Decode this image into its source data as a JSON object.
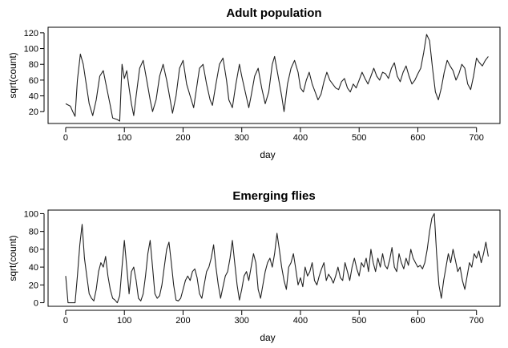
{
  "chart_data": [
    {
      "type": "line",
      "title": "Adult population",
      "xlabel": "day",
      "ylabel": "sqrt(count)",
      "xlim": [
        -30,
        740
      ],
      "ylim": [
        5,
        127
      ],
      "xticks": [
        0,
        100,
        200,
        300,
        400,
        500,
        600,
        700
      ],
      "yticks": [
        20,
        40,
        60,
        80,
        100,
        120
      ],
      "grid": false,
      "series": [
        {
          "x": [
            0,
            8,
            12,
            16,
            20,
            25,
            30,
            35,
            40,
            46,
            52,
            58,
            64,
            70,
            76,
            80,
            88,
            92,
            96,
            100,
            104,
            108,
            112,
            116,
            120,
            126,
            132,
            138,
            144,
            148,
            154,
            160,
            166,
            172,
            178,
            182,
            188,
            194,
            200,
            206,
            212,
            218,
            222,
            228,
            234,
            240,
            246,
            250,
            256,
            262,
            268,
            274,
            278,
            284,
            290,
            296,
            300,
            306,
            312,
            316,
            322,
            328,
            334,
            340,
            346,
            352,
            356,
            362,
            368,
            372,
            378,
            384,
            390,
            396,
            400,
            405,
            410,
            415,
            420,
            425,
            430,
            435,
            440,
            445,
            450,
            455,
            460,
            465,
            470,
            475,
            480,
            485,
            490,
            495,
            500,
            505,
            510,
            515,
            520,
            525,
            530,
            535,
            540,
            545,
            550,
            555,
            560,
            565,
            570,
            575,
            580,
            585,
            590,
            595,
            600,
            605,
            610,
            615,
            620,
            625,
            630,
            635,
            640,
            645,
            650,
            655,
            660,
            665,
            670,
            675,
            680,
            685,
            690,
            695,
            700,
            705,
            710,
            715,
            720
          ],
          "y": [
            30,
            27,
            20,
            14,
            60,
            93,
            80,
            55,
            30,
            15,
            35,
            65,
            72,
            50,
            28,
            12,
            10,
            8,
            80,
            62,
            72,
            50,
            30,
            15,
            40,
            75,
            85,
            60,
            35,
            20,
            35,
            65,
            80,
            60,
            35,
            18,
            40,
            75,
            85,
            55,
            40,
            25,
            45,
            75,
            80,
            55,
            35,
            28,
            55,
            80,
            88,
            60,
            35,
            25,
            55,
            80,
            65,
            45,
            25,
            40,
            65,
            75,
            50,
            30,
            45,
            80,
            90,
            65,
            40,
            20,
            55,
            75,
            85,
            70,
            50,
            45,
            60,
            70,
            55,
            45,
            35,
            42,
            58,
            70,
            60,
            55,
            50,
            48,
            58,
            62,
            50,
            45,
            55,
            50,
            60,
            70,
            62,
            55,
            65,
            75,
            65,
            60,
            70,
            68,
            62,
            75,
            82,
            65,
            58,
            70,
            78,
            65,
            55,
            60,
            68,
            75,
            95,
            118,
            110,
            75,
            45,
            35,
            50,
            70,
            85,
            78,
            72,
            60,
            68,
            80,
            75,
            55,
            48,
            65,
            88,
            82,
            78,
            85,
            90
          ]
        }
      ]
    },
    {
      "type": "line",
      "title": "Emerging flies",
      "xlabel": "day",
      "ylabel": "sqrt(count)",
      "xlim": [
        -30,
        740
      ],
      "ylim": [
        -4,
        104
      ],
      "xticks": [
        0,
        100,
        200,
        300,
        400,
        500,
        600,
        700
      ],
      "yticks": [
        0,
        20,
        40,
        60,
        80,
        100
      ],
      "grid": false,
      "series": [
        {
          "x": [
            0,
            4,
            8,
            12,
            16,
            20,
            24,
            28,
            32,
            36,
            40,
            44,
            48,
            52,
            56,
            60,
            64,
            68,
            72,
            76,
            80,
            84,
            88,
            92,
            96,
            100,
            104,
            108,
            112,
            116,
            120,
            124,
            128,
            132,
            136,
            140,
            144,
            148,
            152,
            156,
            160,
            164,
            168,
            172,
            176,
            180,
            184,
            188,
            192,
            196,
            200,
            204,
            208,
            212,
            216,
            220,
            224,
            228,
            232,
            236,
            240,
            244,
            248,
            252,
            256,
            260,
            264,
            268,
            272,
            276,
            280,
            284,
            288,
            292,
            296,
            300,
            304,
            308,
            312,
            316,
            320,
            324,
            328,
            332,
            336,
            340,
            344,
            348,
            352,
            356,
            360,
            364,
            368,
            372,
            376,
            380,
            384,
            388,
            392,
            396,
            400,
            404,
            408,
            412,
            416,
            420,
            424,
            428,
            432,
            436,
            440,
            444,
            448,
            452,
            456,
            460,
            464,
            468,
            472,
            476,
            480,
            484,
            488,
            492,
            496,
            500,
            504,
            508,
            512,
            516,
            520,
            524,
            528,
            532,
            536,
            540,
            544,
            548,
            552,
            556,
            560,
            564,
            568,
            572,
            576,
            580,
            584,
            588,
            592,
            596,
            600,
            604,
            608,
            612,
            616,
            620,
            624,
            628,
            632,
            636,
            640,
            644,
            648,
            652,
            656,
            660,
            664,
            668,
            672,
            676,
            680,
            684,
            688,
            692,
            696,
            700,
            704,
            708,
            712,
            716,
            720
          ],
          "y": [
            30,
            0,
            0,
            0,
            0,
            30,
            65,
            88,
            50,
            30,
            10,
            5,
            2,
            15,
            35,
            45,
            40,
            52,
            30,
            15,
            5,
            3,
            0,
            8,
            40,
            70,
            40,
            10,
            35,
            40,
            25,
            5,
            2,
            10,
            30,
            55,
            70,
            40,
            10,
            5,
            8,
            20,
            40,
            60,
            68,
            45,
            20,
            3,
            2,
            5,
            15,
            25,
            30,
            25,
            35,
            38,
            28,
            10,
            5,
            20,
            35,
            40,
            50,
            65,
            40,
            20,
            5,
            18,
            30,
            35,
            50,
            70,
            45,
            20,
            3,
            15,
            30,
            35,
            25,
            40,
            55,
            45,
            15,
            5,
            20,
            35,
            45,
            50,
            40,
            55,
            78,
            60,
            40,
            25,
            15,
            40,
            45,
            55,
            38,
            20,
            28,
            18,
            40,
            30,
            35,
            45,
            25,
            20,
            30,
            38,
            45,
            25,
            32,
            28,
            22,
            30,
            40,
            28,
            25,
            45,
            35,
            25,
            40,
            50,
            38,
            30,
            45,
            40,
            50,
            35,
            60,
            45,
            35,
            50,
            40,
            55,
            42,
            38,
            48,
            62,
            40,
            35,
            55,
            45,
            38,
            50,
            42,
            60,
            50,
            45,
            40,
            42,
            38,
            45,
            60,
            80,
            95,
            100,
            55,
            20,
            5,
            25,
            40,
            55,
            45,
            60,
            48,
            35,
            40,
            25,
            15,
            30,
            45,
            40,
            55,
            50,
            58,
            45,
            55,
            68,
            52
          ]
        }
      ]
    }
  ]
}
